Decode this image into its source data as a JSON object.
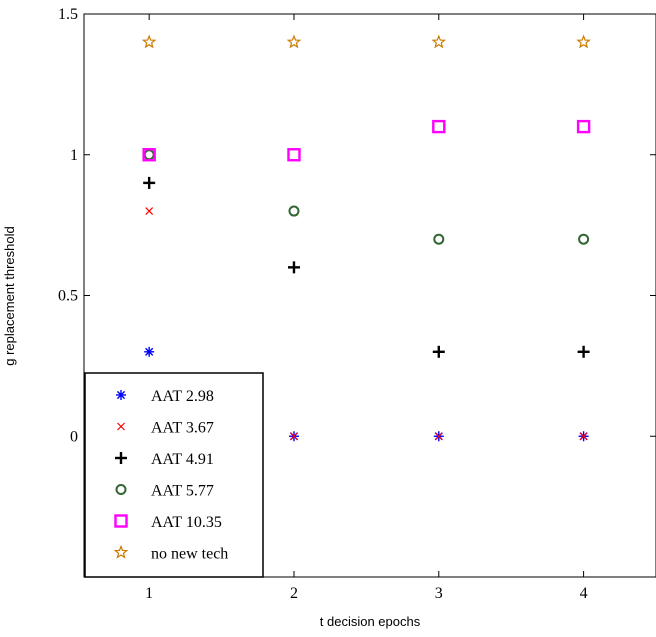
{
  "chart_data": {
    "type": "scatter",
    "xlabel": "t  decision epochs",
    "ylabel": "g  replacement threshold",
    "xlim": [
      0.55,
      4.5
    ],
    "ylim": [
      -0.5,
      1.5
    ],
    "x_ticks": [
      1,
      2,
      3,
      4
    ],
    "y_ticks": [
      0,
      0.5,
      1,
      1.5
    ],
    "x_tick_labels": [
      "1",
      "2",
      "3",
      "4"
    ],
    "y_tick_labels": [
      "0",
      "0.5",
      "1",
      "1.5"
    ],
    "grid": false,
    "legend_position": "bottom-left",
    "series": [
      {
        "name": "AAT 2.98",
        "marker": "asterisk",
        "color": "#0000ff",
        "x": [
          1,
          2,
          3,
          4
        ],
        "y": [
          0.3,
          0,
          0,
          0
        ]
      },
      {
        "name": "AAT 3.67",
        "marker": "x",
        "color": "#ff0000",
        "x": [
          1,
          2,
          3,
          4
        ],
        "y": [
          0.8,
          0,
          0,
          0
        ]
      },
      {
        "name": "AAT 4.91",
        "marker": "plus",
        "color": "#000000",
        "x": [
          1,
          2,
          3,
          4
        ],
        "y": [
          0.9,
          0.6,
          0.3,
          0.3
        ]
      },
      {
        "name": "AAT 5.77",
        "marker": "circle",
        "color": "#336633",
        "x": [
          1,
          2,
          3,
          4
        ],
        "y": [
          1.0,
          0.8,
          0.7,
          0.7
        ]
      },
      {
        "name": "AAT 10.35",
        "marker": "square",
        "color": "#ff00ff",
        "x": [
          1,
          2,
          3,
          4
        ],
        "y": [
          1.0,
          1.0,
          1.1,
          1.1
        ]
      },
      {
        "name": "no new tech",
        "marker": "star",
        "color": "#cc7a00",
        "x": [
          1,
          2,
          3,
          4
        ],
        "y": [
          1.4,
          1.4,
          1.4,
          1.4
        ]
      }
    ]
  }
}
